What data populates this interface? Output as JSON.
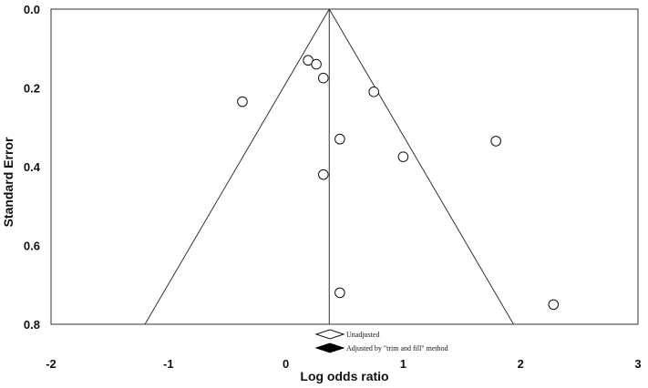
{
  "chart_data": {
    "type": "scatter",
    "title": "",
    "xlabel": "Log odds ratio",
    "ylabel": "Standard Error",
    "xlim": [
      -2,
      3
    ],
    "ylim": [
      0,
      0.8
    ],
    "y_inverted": true,
    "grid": false,
    "x_ticks": [
      "-2",
      "-1",
      "0",
      "1",
      "2",
      "3"
    ],
    "y_ticks": [
      "0.0",
      "0.2",
      "0.4",
      "0.6",
      "0.8"
    ],
    "pooled_estimate": 0.37,
    "funnel": {
      "apex_se": 0,
      "bottom_se": 0.8,
      "left_x_at_bottom": -1.2,
      "right_x_at_bottom": 1.94
    },
    "points": [
      {
        "x": -0.37,
        "y": 0.235
      },
      {
        "x": 0.19,
        "y": 0.13
      },
      {
        "x": 0.26,
        "y": 0.14
      },
      {
        "x": 0.32,
        "y": 0.175
      },
      {
        "x": 0.75,
        "y": 0.21
      },
      {
        "x": 0.46,
        "y": 0.33
      },
      {
        "x": 0.32,
        "y": 0.42
      },
      {
        "x": 1.0,
        "y": 0.375
      },
      {
        "x": 1.79,
        "y": 0.335
      },
      {
        "x": 0.46,
        "y": 0.72
      },
      {
        "x": 2.28,
        "y": 0.75
      }
    ],
    "legend": {
      "placement": "bottom-center",
      "entries": [
        {
          "label": "Unadjusted",
          "marker": "hollow-diamond"
        },
        {
          "label": "Adjusted by \"trim and fill\" method",
          "marker": "filled-diamond"
        }
      ]
    }
  }
}
